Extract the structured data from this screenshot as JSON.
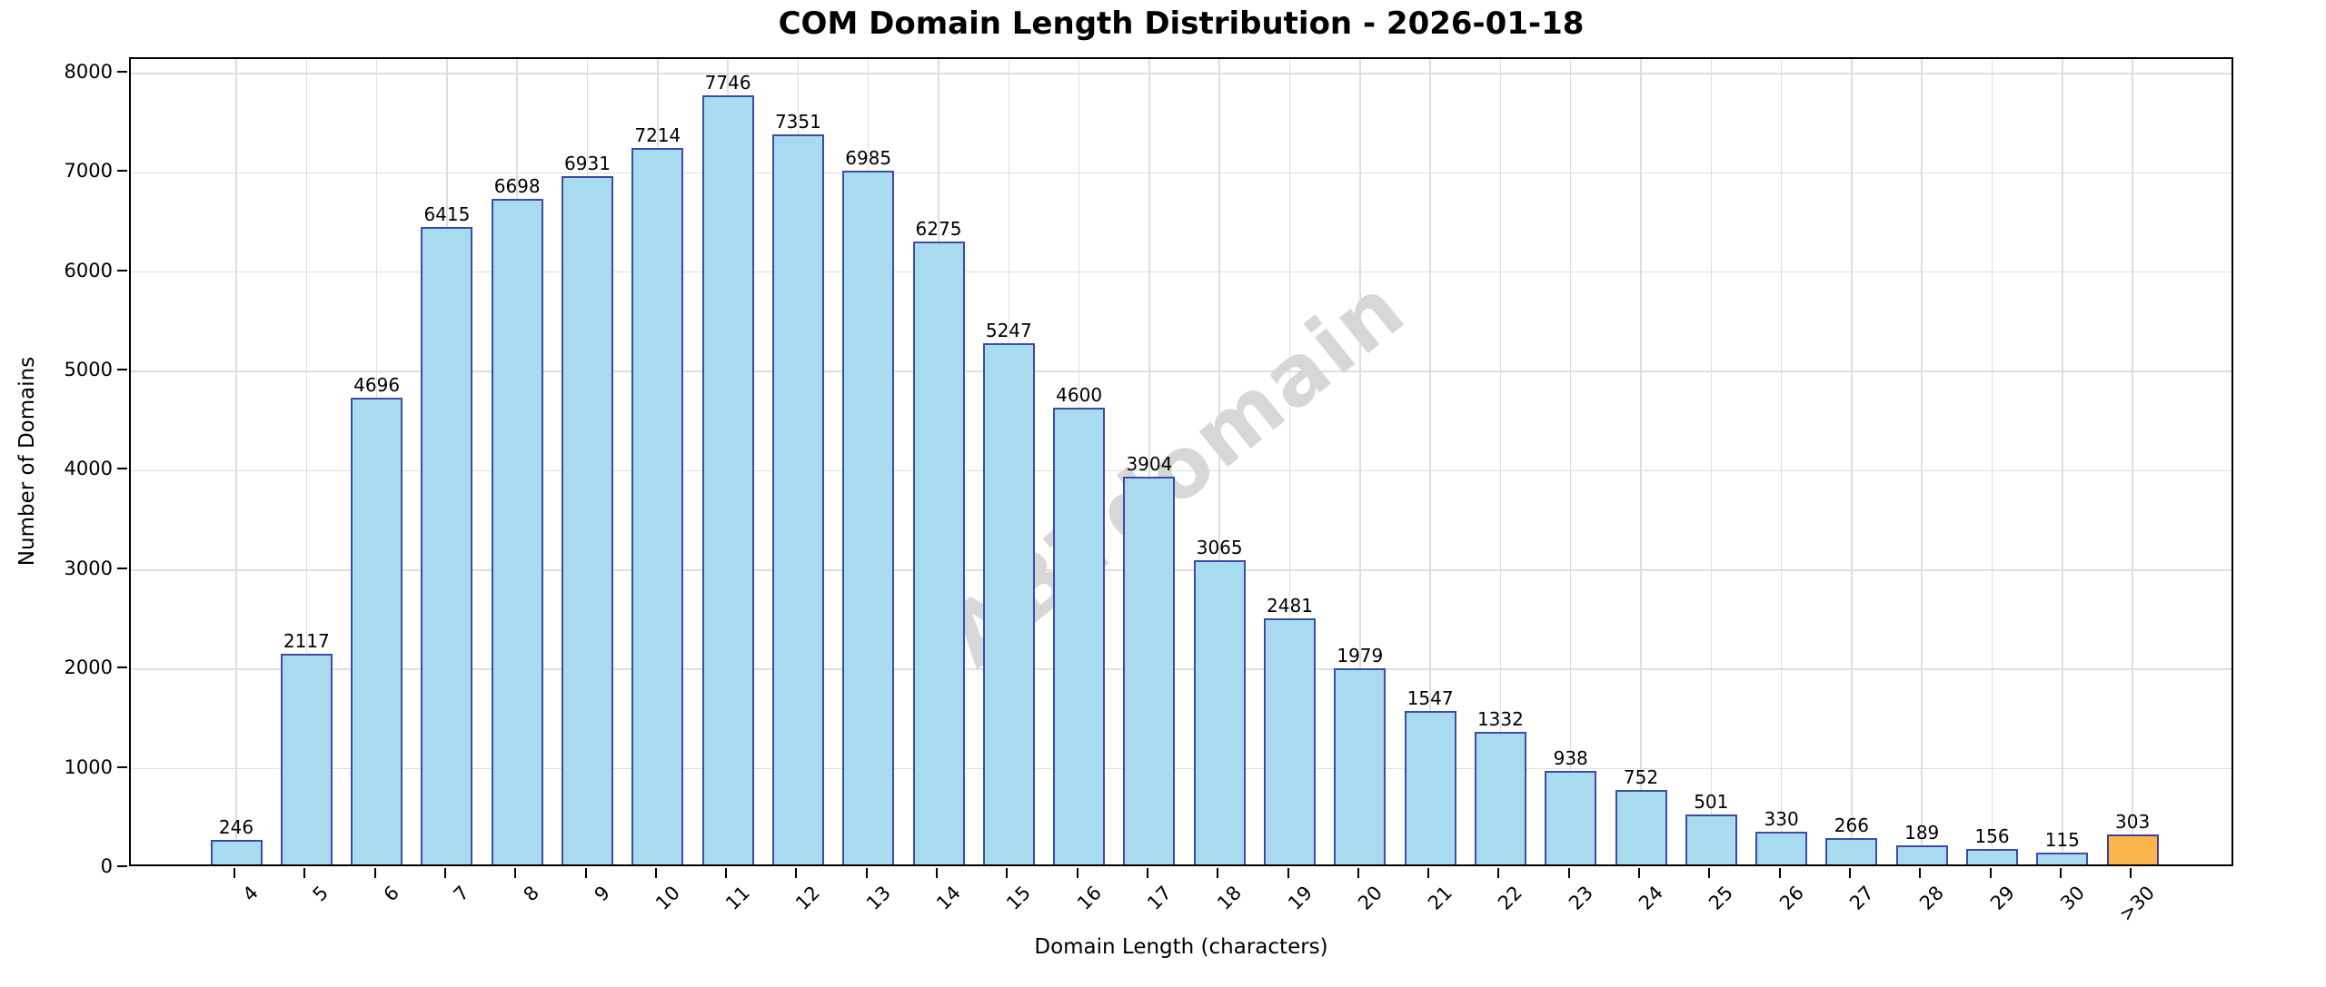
{
  "chart_data": {
    "type": "bar",
    "title": "COM Domain Length Distribution - 2026-01-18",
    "xlabel": "Domain Length (characters)",
    "ylabel": "Number of Domains",
    "watermark": "ABTdomain",
    "categories": [
      "4",
      "5",
      "6",
      "7",
      "8",
      "9",
      "10",
      "11",
      "12",
      "13",
      "14",
      "15",
      "16",
      "17",
      "18",
      "19",
      "20",
      "21",
      "22",
      "23",
      "24",
      "25",
      "26",
      "27",
      "28",
      "29",
      "30",
      ">30"
    ],
    "values": [
      246,
      2117,
      4696,
      6415,
      6698,
      6931,
      7214,
      7746,
      7351,
      6985,
      6275,
      5247,
      4600,
      3904,
      3065,
      2481,
      1979,
      1547,
      1332,
      938,
      752,
      501,
      330,
      266,
      189,
      156,
      115,
      303
    ],
    "bar_value_labels_shown": true,
    "highlight_index": 27,
    "ylim": [
      0,
      8146
    ],
    "yticks": [
      0,
      1000,
      2000,
      3000,
      4000,
      5000,
      6000,
      7000,
      8000
    ],
    "grid": true,
    "legend_position": "none",
    "colors": {
      "bar_fill": "#a9dbee",
      "bar_edge": "#3c4ba9",
      "highlight_fill": "#f9b54a",
      "highlight_edge": "#463ba0",
      "grid": "#dedede",
      "spine": "#000000",
      "text": "#000000",
      "watermark": "#d7d7d7"
    }
  }
}
